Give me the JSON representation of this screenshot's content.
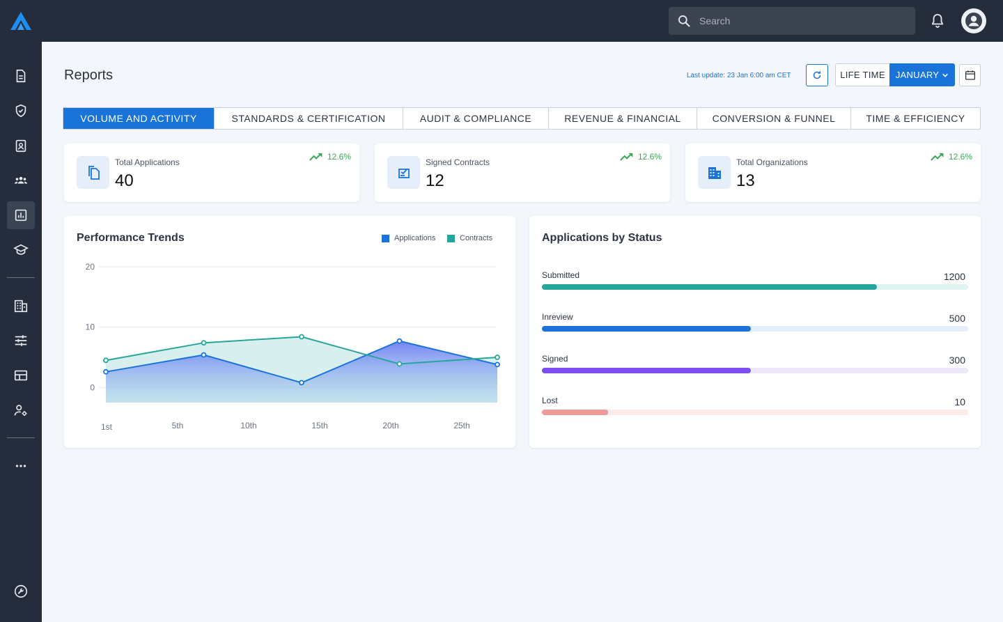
{
  "header": {
    "search_placeholder": "Search"
  },
  "sidebar": {
    "items": [
      {
        "icon": "document-icon"
      },
      {
        "icon": "shield-check-icon"
      },
      {
        "icon": "badge-icon"
      },
      {
        "icon": "group-icon"
      },
      {
        "icon": "reports-icon",
        "active": true
      },
      {
        "icon": "graduation-cap-icon"
      },
      {
        "icon": "building-icon"
      },
      {
        "icon": "sliders-icon"
      },
      {
        "icon": "layout-icon"
      },
      {
        "icon": "user-settings-icon"
      },
      {
        "icon": "more-icon"
      },
      {
        "icon": "wrench-icon"
      }
    ]
  },
  "page": {
    "title": "Reports",
    "last_update": "Last update: 23 Jan 6:00 am CET",
    "lifetime_label": "LIFE TIME",
    "month_label": "JANUARY"
  },
  "tabs": [
    {
      "label": "VOLUME AND ACTIVITY",
      "active": true
    },
    {
      "label": "STANDARDS & CERTIFICATION"
    },
    {
      "label": "AUDIT & COMPLIANCE"
    },
    {
      "label": "REVENUE & FINANCIAL"
    },
    {
      "label": "CONVERSION & FUNNEL"
    },
    {
      "label": "TIME & EFFICIENCY"
    }
  ],
  "stats": [
    {
      "label": "Total Applications",
      "value": "40",
      "trend": "12.6%",
      "icon": "copy-document-icon"
    },
    {
      "label": "Signed Contracts",
      "value": "12",
      "trend": "12.6%",
      "icon": "signed-contract-icon"
    },
    {
      "label": "Total Organizations",
      "value": "13",
      "trend": "12.6%",
      "icon": "building-icon"
    }
  ],
  "performance": {
    "title": "Performance Trends",
    "legend": [
      "Applications",
      "Contracts"
    ]
  },
  "chart_data": {
    "type": "area",
    "x": [
      1,
      8,
      15,
      22,
      29
    ],
    "tick_labels": [
      "1st",
      "5th",
      "10th",
      "15th",
      "20th",
      "25th"
    ],
    "y_ticks": [
      "20",
      "10",
      "0"
    ],
    "ylim": [
      -2.5,
      20
    ],
    "series": [
      {
        "name": "Applications",
        "color": "#1a73d9",
        "values": [
          2.6,
          5.4,
          0.8,
          7.7,
          3.8
        ]
      },
      {
        "name": "Contracts",
        "color": "#26a69a",
        "values": [
          4.5,
          7.4,
          8.4,
          3.9,
          5.0
        ]
      }
    ],
    "grid": true,
    "legend_position": "top-right"
  },
  "status": {
    "title": "Applications by Status",
    "rows": [
      {
        "name": "Submitted",
        "value": "1200",
        "fill": 0.786,
        "color": "#26a69a",
        "track": "#dff3f0"
      },
      {
        "name": "Inreview",
        "value": "500",
        "fill": 0.49,
        "color": "#1a73d9",
        "track": "#e3eefa"
      },
      {
        "name": "Signed",
        "value": "300",
        "fill": 0.49,
        "color": "#7b4ff0",
        "track": "#ece8f7"
      },
      {
        "name": "Lost",
        "value": "10",
        "fill": 0.155,
        "color": "#ef9a9a",
        "track": "#fcebeb"
      }
    ]
  }
}
